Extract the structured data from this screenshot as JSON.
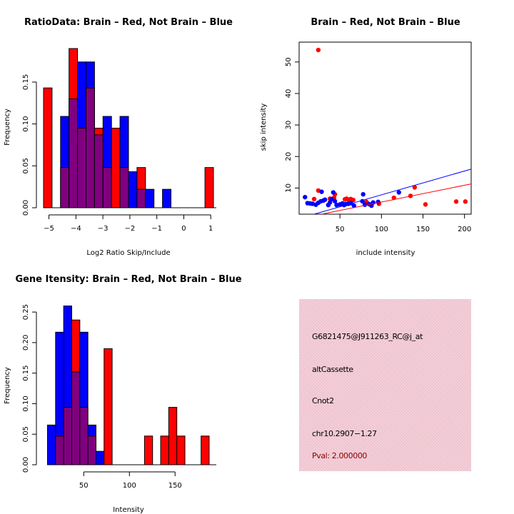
{
  "chart_data": [
    {
      "type": "bar",
      "subtype": "overlaid-histogram",
      "title": "RatioData: Brain – Red, Not Brain – Blue",
      "xlabel": "Log2 Ratio Skip/Include",
      "ylabel": "Frequency",
      "xlim": [
        -5.2,
        1.1
      ],
      "ylim": [
        0,
        0.19
      ],
      "xticks": [
        -5,
        -4,
        -3,
        -2,
        -1,
        0,
        1
      ],
      "xtick_labels": [
        "−5",
        "−4",
        "−3",
        "−2",
        "−1",
        "0",
        "1"
      ],
      "yticks": [
        0,
        0.05,
        0.1,
        0.15
      ],
      "ytick_labels": [
        "0.00",
        "0.05",
        "0.10",
        "0.15"
      ],
      "bin_start": -5.2,
      "bin_width": 0.315,
      "series": [
        {
          "name": "Brain",
          "color": "#ff0000",
          "values": [
            0.143,
            0,
            0.048,
            0.19,
            0.095,
            0.143,
            0.095,
            0.048,
            0.095,
            0.048,
            0,
            0.048,
            0,
            0,
            0,
            0,
            0,
            0,
            0,
            0.048
          ]
        },
        {
          "name": "Not Brain",
          "color": "#0000ff",
          "values": [
            0,
            0,
            0.109,
            0.13,
            0.174,
            0.174,
            0.087,
            0.109,
            0,
            0.109,
            0.043,
            0.022,
            0.022,
            0,
            0.022,
            0,
            0,
            0,
            0,
            0
          ]
        }
      ],
      "overlap_color": "#800080"
    },
    {
      "type": "scatter",
      "title": "Brain – Red, Not Brain – Blue",
      "xlabel": "include intensity",
      "ylabel": "skip intensity",
      "xlim": [
        0.9,
        208
      ],
      "ylim": [
        1.7,
        56.3
      ],
      "xticks": [
        50,
        100,
        150,
        200
      ],
      "yticks": [
        10,
        20,
        30,
        40,
        50
      ],
      "series": [
        {
          "name": "Brain",
          "color": "#ff0000",
          "points": [
            [
              24,
              53.8
            ],
            [
              24,
              9.2
            ],
            [
              19,
              6.5
            ],
            [
              38,
              6.6
            ],
            [
              43,
              6.9
            ],
            [
              44,
              8.0
            ],
            [
              56,
              6.4
            ],
            [
              58,
              6.6
            ],
            [
              60,
              6.3
            ],
            [
              63,
              6.5
            ],
            [
              66,
              6.2
            ],
            [
              82,
              5.6
            ],
            [
              97,
              5.0
            ],
            [
              115,
              6.9
            ],
            [
              135,
              7.5
            ],
            [
              140,
              10.2
            ],
            [
              153,
              4.8
            ],
            [
              190,
              5.7
            ],
            [
              201,
              5.7
            ]
          ],
          "fit_line": [
            [
              28,
              1.7
            ],
            [
              208,
              11.3
            ]
          ]
        },
        {
          "name": "Not Brain",
          "color": "#0000ff",
          "points": [
            [
              8,
              7.1
            ],
            [
              11,
              5.2
            ],
            [
              14,
              5.1
            ],
            [
              17,
              5.0
            ],
            [
              21,
              4.7
            ],
            [
              24,
              5.3
            ],
            [
              27,
              5.8
            ],
            [
              30,
              6.0
            ],
            [
              32,
              6.3
            ],
            [
              28,
              8.8
            ],
            [
              36,
              4.6
            ],
            [
              38,
              5.4
            ],
            [
              40,
              6.5
            ],
            [
              42,
              8.6
            ],
            [
              44,
              5.8
            ],
            [
              46,
              4.6
            ],
            [
              50,
              4.8
            ],
            [
              53,
              5.1
            ],
            [
              55,
              4.6
            ],
            [
              57,
              4.9
            ],
            [
              60,
              5.0
            ],
            [
              63,
              5.2
            ],
            [
              67,
              4.4
            ],
            [
              77,
              5.8
            ],
            [
              78,
              8.0
            ],
            [
              80,
              4.7
            ],
            [
              85,
              4.9
            ],
            [
              88,
              4.4
            ],
            [
              90,
              5.4
            ],
            [
              96,
              5.6
            ],
            [
              121,
              8.6
            ]
          ],
          "fit_line": [
            [
              19,
              1.7
            ],
            [
              208,
              16.0
            ]
          ]
        }
      ]
    },
    {
      "type": "bar",
      "subtype": "overlaid-histogram",
      "title": "Gene Itensity: Brain – Red, Not Brain – Blue",
      "xlabel": "Intensity",
      "ylabel": "Frequency",
      "xlim": [
        6,
        192
      ],
      "ylim": [
        0,
        0.27
      ],
      "xticks": [
        50,
        100,
        150
      ],
      "xtick_labels": [
        "50",
        "100",
        "150"
      ],
      "yticks": [
        0,
        0.05,
        0.1,
        0.15,
        0.2,
        0.25
      ],
      "ytick_labels": [
        "0.00",
        "0.05",
        "0.10",
        "0.15",
        "0.20",
        "0.25"
      ],
      "bin_start": 10.3,
      "bin_width": 8.85,
      "series": [
        {
          "name": "Brain",
          "color": "#ff0000",
          "values": [
            0,
            0.047,
            0.094,
            0.237,
            0.094,
            0.047,
            0,
            0.19,
            0,
            0,
            0,
            0,
            0.047,
            0,
            0.047,
            0.094,
            0.047,
            0,
            0,
            0.047
          ]
        },
        {
          "name": "Not Brain",
          "color": "#0000ff",
          "values": [
            0.065,
            0.217,
            0.26,
            0.152,
            0.217,
            0.065,
            0.022,
            0,
            0,
            0,
            0,
            0,
            0,
            0,
            0,
            0,
            0,
            0,
            0,
            0
          ]
        }
      ],
      "overlap_color": "#800080"
    }
  ],
  "info_panel": {
    "probe_id": "G6821475@J911263_RC@j_at",
    "event_type": "altCassette",
    "gene": "Cnot2",
    "location": "chr10.2907−1.27",
    "pval": "Pval: 2.000000",
    "pval_color": "#8b0000",
    "background_color": "#efc3cf"
  }
}
